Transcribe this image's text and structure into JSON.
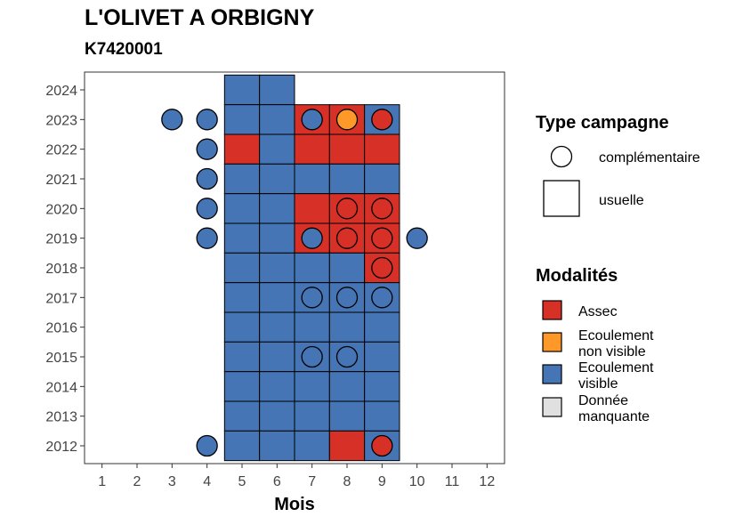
{
  "title": "L'OLIVET A ORBIGNY",
  "subtitle": "K7420001",
  "chart_data": {
    "type": "heatmap",
    "xlabel": "Mois",
    "ylabel": "",
    "x_ticks": [
      "1",
      "2",
      "3",
      "4",
      "5",
      "6",
      "7",
      "8",
      "9",
      "10",
      "11",
      "12"
    ],
    "y_ticks": [
      "2012",
      "2013",
      "2014",
      "2015",
      "2016",
      "2017",
      "2018",
      "2019",
      "2020",
      "2021",
      "2022",
      "2023",
      "2024"
    ],
    "xlim": [
      0.5,
      12.5
    ],
    "ylim": [
      2011.4,
      2024.6
    ],
    "grid": false,
    "legend_position": "right",
    "colors": {
      "Assec": "#d73027",
      "Ecoulement non visible": "#fe9929",
      "Ecoulement visible": "#4575b4",
      "Donnée manquante": "#e0e0e0"
    },
    "tiles_usuelle": [
      {
        "year": 2024,
        "month": 5,
        "modalite": "Ecoulement visible"
      },
      {
        "year": 2024,
        "month": 6,
        "modalite": "Ecoulement visible"
      },
      {
        "year": 2023,
        "month": 5,
        "modalite": "Ecoulement visible"
      },
      {
        "year": 2023,
        "month": 6,
        "modalite": "Ecoulement visible"
      },
      {
        "year": 2023,
        "month": 7,
        "modalite": "Assec"
      },
      {
        "year": 2023,
        "month": 8,
        "modalite": "Assec"
      },
      {
        "year": 2023,
        "month": 9,
        "modalite": "Ecoulement visible"
      },
      {
        "year": 2022,
        "month": 5,
        "modalite": "Assec"
      },
      {
        "year": 2022,
        "month": 6,
        "modalite": "Ecoulement visible"
      },
      {
        "year": 2022,
        "month": 7,
        "modalite": "Assec"
      },
      {
        "year": 2022,
        "month": 8,
        "modalite": "Assec"
      },
      {
        "year": 2022,
        "month": 9,
        "modalite": "Assec"
      },
      {
        "year": 2021,
        "month": 5,
        "modalite": "Ecoulement visible"
      },
      {
        "year": 2021,
        "month": 6,
        "modalite": "Ecoulement visible"
      },
      {
        "year": 2021,
        "month": 7,
        "modalite": "Ecoulement visible"
      },
      {
        "year": 2021,
        "month": 8,
        "modalite": "Ecoulement visible"
      },
      {
        "year": 2021,
        "month": 9,
        "modalite": "Ecoulement visible"
      },
      {
        "year": 2020,
        "month": 5,
        "modalite": "Ecoulement visible"
      },
      {
        "year": 2020,
        "month": 6,
        "modalite": "Ecoulement visible"
      },
      {
        "year": 2020,
        "month": 7,
        "modalite": "Assec"
      },
      {
        "year": 2020,
        "month": 8,
        "modalite": "Assec"
      },
      {
        "year": 2020,
        "month": 9,
        "modalite": "Assec"
      },
      {
        "year": 2019,
        "month": 5,
        "modalite": "Ecoulement visible"
      },
      {
        "year": 2019,
        "month": 6,
        "modalite": "Ecoulement visible"
      },
      {
        "year": 2019,
        "month": 7,
        "modalite": "Assec"
      },
      {
        "year": 2019,
        "month": 8,
        "modalite": "Assec"
      },
      {
        "year": 2019,
        "month": 9,
        "modalite": "Assec"
      },
      {
        "year": 2018,
        "month": 5,
        "modalite": "Ecoulement visible"
      },
      {
        "year": 2018,
        "month": 6,
        "modalite": "Ecoulement visible"
      },
      {
        "year": 2018,
        "month": 7,
        "modalite": "Ecoulement visible"
      },
      {
        "year": 2018,
        "month": 8,
        "modalite": "Ecoulement visible"
      },
      {
        "year": 2018,
        "month": 9,
        "modalite": "Assec"
      },
      {
        "year": 2017,
        "month": 5,
        "modalite": "Ecoulement visible"
      },
      {
        "year": 2017,
        "month": 6,
        "modalite": "Ecoulement visible"
      },
      {
        "year": 2017,
        "month": 7,
        "modalite": "Ecoulement visible"
      },
      {
        "year": 2017,
        "month": 8,
        "modalite": "Ecoulement visible"
      },
      {
        "year": 2017,
        "month": 9,
        "modalite": "Ecoulement visible"
      },
      {
        "year": 2016,
        "month": 5,
        "modalite": "Ecoulement visible"
      },
      {
        "year": 2016,
        "month": 6,
        "modalite": "Ecoulement visible"
      },
      {
        "year": 2016,
        "month": 7,
        "modalite": "Ecoulement visible"
      },
      {
        "year": 2016,
        "month": 8,
        "modalite": "Ecoulement visible"
      },
      {
        "year": 2016,
        "month": 9,
        "modalite": "Ecoulement visible"
      },
      {
        "year": 2015,
        "month": 5,
        "modalite": "Ecoulement visible"
      },
      {
        "year": 2015,
        "month": 6,
        "modalite": "Ecoulement visible"
      },
      {
        "year": 2015,
        "month": 7,
        "modalite": "Ecoulement visible"
      },
      {
        "year": 2015,
        "month": 8,
        "modalite": "Ecoulement visible"
      },
      {
        "year": 2015,
        "month": 9,
        "modalite": "Ecoulement visible"
      },
      {
        "year": 2014,
        "month": 5,
        "modalite": "Ecoulement visible"
      },
      {
        "year": 2014,
        "month": 6,
        "modalite": "Ecoulement visible"
      },
      {
        "year": 2014,
        "month": 7,
        "modalite": "Ecoulement visible"
      },
      {
        "year": 2014,
        "month": 8,
        "modalite": "Ecoulement visible"
      },
      {
        "year": 2014,
        "month": 9,
        "modalite": "Ecoulement visible"
      },
      {
        "year": 2013,
        "month": 5,
        "modalite": "Ecoulement visible"
      },
      {
        "year": 2013,
        "month": 6,
        "modalite": "Ecoulement visible"
      },
      {
        "year": 2013,
        "month": 7,
        "modalite": "Ecoulement visible"
      },
      {
        "year": 2013,
        "month": 8,
        "modalite": "Ecoulement visible"
      },
      {
        "year": 2013,
        "month": 9,
        "modalite": "Ecoulement visible"
      },
      {
        "year": 2012,
        "month": 5,
        "modalite": "Ecoulement visible"
      },
      {
        "year": 2012,
        "month": 6,
        "modalite": "Ecoulement visible"
      },
      {
        "year": 2012,
        "month": 7,
        "modalite": "Ecoulement visible"
      },
      {
        "year": 2012,
        "month": 8,
        "modalite": "Assec"
      },
      {
        "year": 2012,
        "month": 9,
        "modalite": "Ecoulement visible"
      }
    ],
    "points_complementaire": [
      {
        "year": 2023,
        "month": 3,
        "modalite": "Ecoulement visible"
      },
      {
        "year": 2023,
        "month": 4,
        "modalite": "Ecoulement visible"
      },
      {
        "year": 2023,
        "month": 7,
        "modalite": "Ecoulement visible"
      },
      {
        "year": 2023,
        "month": 8,
        "modalite": "Ecoulement non visible"
      },
      {
        "year": 2023,
        "month": 9,
        "modalite": "Assec"
      },
      {
        "year": 2022,
        "month": 4,
        "modalite": "Ecoulement visible"
      },
      {
        "year": 2021,
        "month": 4,
        "modalite": "Ecoulement visible"
      },
      {
        "year": 2020,
        "month": 4,
        "modalite": "Ecoulement visible"
      },
      {
        "year": 2020,
        "month": 8,
        "modalite": "Assec"
      },
      {
        "year": 2020,
        "month": 9,
        "modalite": "Assec"
      },
      {
        "year": 2019,
        "month": 4,
        "modalite": "Ecoulement visible"
      },
      {
        "year": 2019,
        "month": 7,
        "modalite": "Ecoulement visible"
      },
      {
        "year": 2019,
        "month": 8,
        "modalite": "Assec"
      },
      {
        "year": 2019,
        "month": 9,
        "modalite": "Assec"
      },
      {
        "year": 2019,
        "month": 10,
        "modalite": "Ecoulement visible"
      },
      {
        "year": 2018,
        "month": 9,
        "modalite": "Assec"
      },
      {
        "year": 2017,
        "month": 7,
        "modalite": "Ecoulement visible"
      },
      {
        "year": 2017,
        "month": 8,
        "modalite": "Ecoulement visible"
      },
      {
        "year": 2017,
        "month": 9,
        "modalite": "Ecoulement visible"
      },
      {
        "year": 2015,
        "month": 7,
        "modalite": "Ecoulement visible"
      },
      {
        "year": 2015,
        "month": 8,
        "modalite": "Ecoulement visible"
      },
      {
        "year": 2012,
        "month": 4,
        "modalite": "Ecoulement visible"
      },
      {
        "year": 2012,
        "month": 9,
        "modalite": "Assec"
      }
    ],
    "legend": {
      "type_title": "Type campagne",
      "type_items": [
        {
          "shape": "circle",
          "label": "complémentaire"
        },
        {
          "shape": "square",
          "label": "usuelle"
        }
      ],
      "modalites_title": "Modalités",
      "modalites_items": [
        {
          "key": "Assec",
          "label_lines": [
            "Assec"
          ]
        },
        {
          "key": "Ecoulement non visible",
          "label_lines": [
            "Ecoulement",
            "non visible"
          ]
        },
        {
          "key": "Ecoulement visible",
          "label_lines": [
            "Ecoulement",
            "visible"
          ]
        },
        {
          "key": "Donnée manquante",
          "label_lines": [
            "Donnée",
            "manquante"
          ]
        }
      ]
    }
  }
}
